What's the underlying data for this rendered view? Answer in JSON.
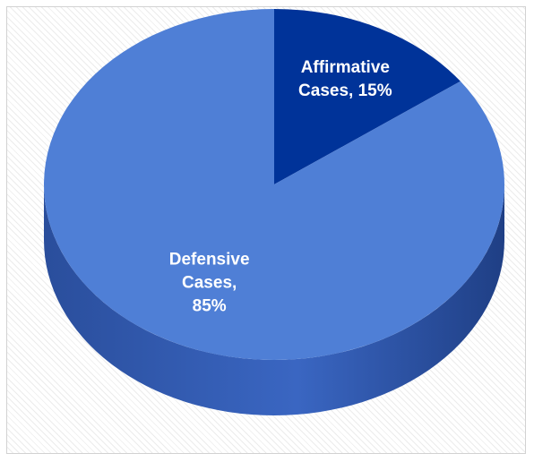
{
  "chart_data": {
    "type": "pie",
    "title": "",
    "style": "3d",
    "legend": "none",
    "slices": [
      {
        "label_lines": [
          "Affirmative",
          "Cases, 15%"
        ],
        "category": "Affirmative Cases",
        "value": 15,
        "color": "#003399"
      },
      {
        "label_lines": [
          "Defensive",
          "Cases,",
          "85%"
        ],
        "category": "Defensive Cases",
        "value": 85,
        "color": "#4f7fd6"
      }
    ],
    "side_colors": {
      "light": "#3a66c2",
      "dark": "#1f3f85"
    }
  }
}
